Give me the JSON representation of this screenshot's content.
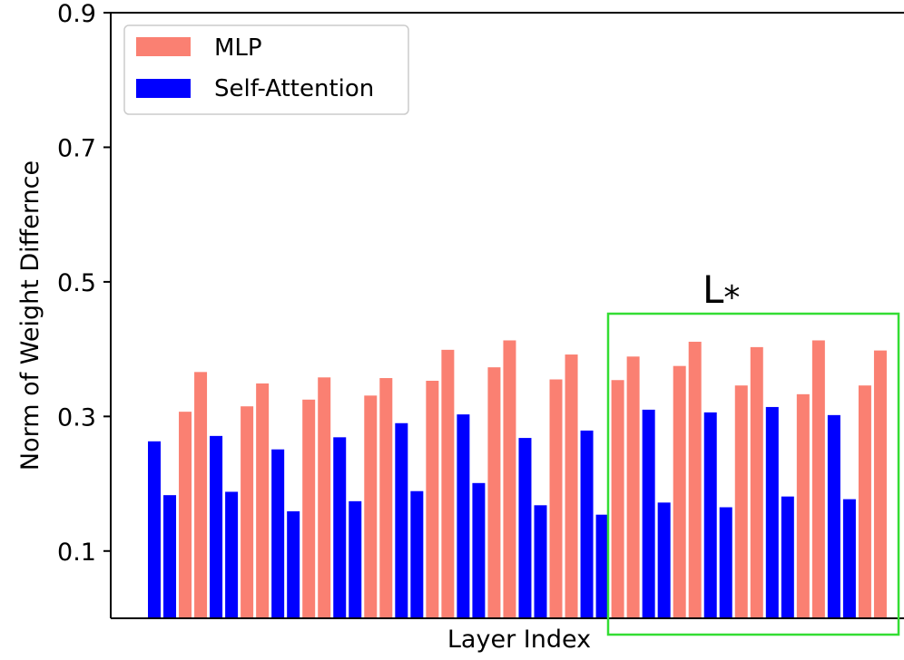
{
  "chart_data": {
    "type": "bar",
    "xlabel": "Layer Index",
    "ylabel": "Norm of Weight Differnce",
    "ylim": [
      0.0,
      0.9
    ],
    "yticks": [
      0.1,
      0.3,
      0.5,
      0.7,
      0.9
    ],
    "ytick_labels": [
      "0.1",
      "0.3",
      "0.5",
      "0.7",
      "0.9"
    ],
    "legend_position": "upper-left",
    "series": [
      {
        "name": "Self-Attention",
        "color": "#0000ff",
        "values": [
          0.263,
          0.183,
          0.271,
          0.188,
          0.251,
          0.159,
          0.269,
          0.174,
          0.29,
          0.189,
          0.303,
          0.201,
          0.268,
          0.168,
          0.279,
          0.154,
          0.31,
          0.172,
          0.306,
          0.165,
          0.314,
          0.181,
          0.302,
          0.177
        ]
      },
      {
        "name": "MLP",
        "color": "#fa8072",
        "values": [
          0.307,
          0.366,
          0.315,
          0.349,
          0.325,
          0.358,
          0.331,
          0.357,
          0.353,
          0.399,
          0.373,
          0.413,
          0.355,
          0.392,
          0.354,
          0.389,
          0.375,
          0.411,
          0.346,
          0.403,
          0.333,
          0.413,
          0.346,
          0.398
        ]
      }
    ],
    "bar_order": "per layer: Self-Attention, Self-Attention, MLP, MLP",
    "annotation": {
      "label": "L",
      "subscript": "*",
      "box_color": "#33dd33",
      "highlighted_layers_start": 8,
      "highlighted_layers_end": 11
    }
  }
}
